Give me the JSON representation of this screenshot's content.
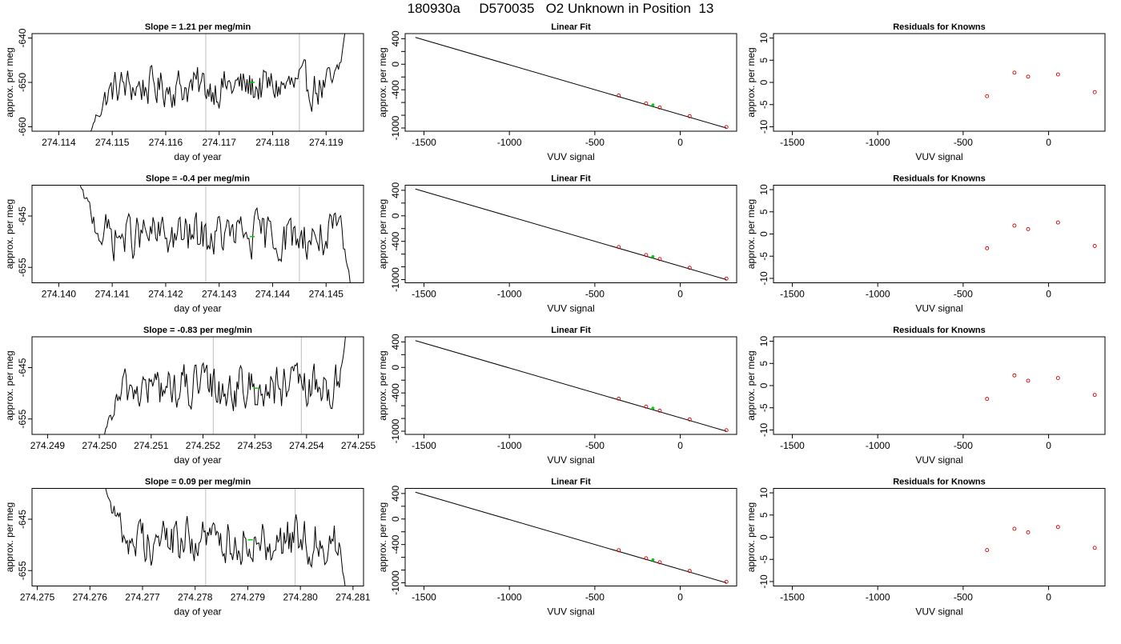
{
  "figure": {
    "title": "180930a     D570035   O2 Unknown in Position  13"
  },
  "colors": {
    "axis": "#000000",
    "trace": "#000000",
    "vline": "#c8c8c8",
    "known_point": "#cc0000",
    "unknown_point": "#00cc00"
  },
  "chart_data": [
    {
      "type": "line",
      "panel": "timeseries",
      "row": 1,
      "title": "Slope =  1.21  per meg/min",
      "xlabel": "day of year",
      "ylabel": "approx. per meg",
      "xlim": [
        274.1135,
        274.1197
      ],
      "ylim": [
        -661,
        -639
      ],
      "xticks": [
        "274.114",
        "274.115",
        "274.116",
        "274.117",
        "274.118",
        "274.119"
      ],
      "xtick_values": [
        274.114,
        274.115,
        274.116,
        274.117,
        274.118,
        274.119
      ],
      "yticks": [
        "-660",
        "-650",
        "-640"
      ],
      "ytick_values": [
        -660,
        -650,
        -640
      ],
      "vlines": [
        274.11675,
        274.1185
      ],
      "trace_x_range": [
        274.1146,
        274.11935
      ],
      "trace_start": -661,
      "trace_end": -639,
      "trace_mean": -651,
      "trace_edge": "both",
      "unknown_marker": {
        "x": 274.11762,
        "y": -650
      }
    },
    {
      "type": "line",
      "panel": "fit",
      "row": 1,
      "title": "Linear Fit",
      "xlabel": "VUV signal",
      "ylabel": "approx. per meg",
      "xlim": [
        -1610,
        330
      ],
      "ylim": [
        -1050,
        480
      ],
      "xticks": [
        "-1500",
        "-1000",
        "-500",
        "0"
      ],
      "xtick_values": [
        -1500,
        -1000,
        -500,
        0
      ],
      "yticks": [
        "-1000",
        "-800",
        "-600",
        "-400",
        "-200",
        "0",
        "200",
        "400"
      ],
      "ytick_values": [
        -1000,
        -800,
        -600,
        -400,
        -200,
        0,
        200,
        400
      ],
      "ytick_text_shown": [
        "-1000",
        "-400",
        "0",
        "400"
      ],
      "fit_line": {
        "x": [
          -1550,
          270
        ],
        "y": [
          420,
          -1000
        ]
      },
      "knowns": {
        "x": [
          -360,
          -200,
          -120,
          55,
          270
        ],
        "y": [
          -490,
          -615,
          -678,
          -815,
          -985
        ]
      },
      "unknown": {
        "x": -160,
        "y": -640
      }
    },
    {
      "type": "scatter",
      "panel": "residuals",
      "row": 1,
      "title": "Residuals for Knowns",
      "xlabel": "VUV signal",
      "ylabel": "approx. per meg",
      "xlim": [
        -1610,
        330
      ],
      "ylim": [
        -11,
        11
      ],
      "xticks": [
        "-1500",
        "-1000",
        "-500",
        "0"
      ],
      "xtick_values": [
        -1500,
        -1000,
        -500,
        0
      ],
      "yticks": [
        "-10",
        "-5",
        "0",
        "5",
        "10"
      ],
      "ytick_values": [
        -10,
        -5,
        0,
        5,
        10
      ],
      "x": [
        -360,
        -200,
        -120,
        55,
        270
      ],
      "y": [
        -3.1,
        2.2,
        1.3,
        1.8,
        -2.2
      ]
    },
    {
      "type": "line",
      "panel": "timeseries",
      "row": 2,
      "title": "Slope =  -0.4  per meg/min",
      "xlabel": "day of year",
      "ylabel": "approx. per meg",
      "xlim": [
        274.1395,
        274.1457
      ],
      "ylim": [
        -658,
        -639
      ],
      "xticks": [
        "274.140",
        "274.141",
        "274.142",
        "274.143",
        "274.144",
        "274.145"
      ],
      "xtick_values": [
        274.14,
        274.141,
        274.142,
        274.143,
        274.144,
        274.145
      ],
      "yticks": [
        "-655",
        "-645"
      ],
      "ytick_values": [
        -655,
        -645
      ],
      "vlines": [
        274.14275,
        274.1445
      ],
      "trace_x_range": [
        274.1404,
        274.14545
      ],
      "trace_start": -639,
      "trace_end": -658,
      "trace_mean": -649,
      "trace_edge": "both",
      "unknown_marker": {
        "x": 274.14362,
        "y": -649
      }
    },
    {
      "type": "line",
      "panel": "fit",
      "row": 2,
      "title": "Linear Fit",
      "xlabel": "VUV signal",
      "ylabel": "approx. per meg",
      "xlim": [
        -1610,
        330
      ],
      "ylim": [
        -1050,
        480
      ],
      "xticks": [
        "-1500",
        "-1000",
        "-500",
        "0"
      ],
      "xtick_values": [
        -1500,
        -1000,
        -500,
        0
      ],
      "yticks": [
        "-1000",
        "-800",
        "-600",
        "-400",
        "-200",
        "0",
        "200",
        "400"
      ],
      "ytick_values": [
        -1000,
        -800,
        -600,
        -400,
        -200,
        0,
        200,
        400
      ],
      "ytick_text_shown": [
        "-1000",
        "-400",
        "0",
        "400"
      ],
      "fit_line": {
        "x": [
          -1550,
          270
        ],
        "y": [
          420,
          -1000
        ]
      },
      "knowns": {
        "x": [
          -360,
          -200,
          -120,
          55,
          270
        ],
        "y": [
          -490,
          -615,
          -678,
          -815,
          -985
        ]
      },
      "unknown": {
        "x": -160,
        "y": -640
      }
    },
    {
      "type": "scatter",
      "panel": "residuals",
      "row": 2,
      "title": "Residuals for Knowns",
      "xlabel": "VUV signal",
      "ylabel": "approx. per meg",
      "xlim": [
        -1610,
        330
      ],
      "ylim": [
        -11,
        11
      ],
      "xticks": [
        "-1500",
        "-1000",
        "-500",
        "0"
      ],
      "xtick_values": [
        -1500,
        -1000,
        -500,
        0
      ],
      "yticks": [
        "-10",
        "-5",
        "0",
        "5",
        "10"
      ],
      "ytick_values": [
        -10,
        -5,
        0,
        5,
        10
      ],
      "x": [
        -360,
        -200,
        -120,
        55,
        270
      ],
      "y": [
        -3.2,
        1.9,
        1.1,
        2.6,
        -2.7
      ]
    },
    {
      "type": "line",
      "panel": "timeseries",
      "row": 3,
      "title": "Slope =  -0.83  per meg/min",
      "xlabel": "day of year",
      "ylabel": "approx. per meg",
      "xlim": [
        274.2487,
        274.2551
      ],
      "ylim": [
        -658,
        -639
      ],
      "xticks": [
        "274.249",
        "274.250",
        "274.251",
        "274.252",
        "274.253",
        "274.254",
        "274.255"
      ],
      "xtick_values": [
        274.249,
        274.25,
        274.251,
        274.252,
        274.253,
        274.254,
        274.255
      ],
      "yticks": [
        "-655",
        "-645"
      ],
      "ytick_values": [
        -655,
        -645
      ],
      "vlines": [
        274.2522,
        274.2539
      ],
      "trace_x_range": [
        274.2501,
        274.25475
      ],
      "trace_start": -658,
      "trace_end": -639,
      "trace_mean": -649,
      "trace_edge": "both",
      "unknown_marker": {
        "x": 274.25302,
        "y": -649
      }
    },
    {
      "type": "line",
      "panel": "fit",
      "row": 3,
      "title": "Linear Fit",
      "xlabel": "VUV signal",
      "ylabel": "approx. per meg",
      "xlim": [
        -1610,
        330
      ],
      "ylim": [
        -1050,
        480
      ],
      "xticks": [
        "-1500",
        "-1000",
        "-500",
        "0"
      ],
      "xtick_values": [
        -1500,
        -1000,
        -500,
        0
      ],
      "yticks": [
        "-1000",
        "-800",
        "-600",
        "-400",
        "-200",
        "0",
        "200",
        "400"
      ],
      "ytick_values": [
        -1000,
        -800,
        -600,
        -400,
        -200,
        0,
        200,
        400
      ],
      "ytick_text_shown": [
        "-1000",
        "-400",
        "0",
        "400"
      ],
      "fit_line": {
        "x": [
          -1550,
          270
        ],
        "y": [
          420,
          -1000
        ]
      },
      "knowns": {
        "x": [
          -360,
          -200,
          -120,
          55,
          270
        ],
        "y": [
          -490,
          -615,
          -678,
          -815,
          -985
        ]
      },
      "unknown": {
        "x": -160,
        "y": -640
      }
    },
    {
      "type": "scatter",
      "panel": "residuals",
      "row": 3,
      "title": "Residuals for Knowns",
      "xlabel": "VUV signal",
      "ylabel": "approx. per meg",
      "xlim": [
        -1610,
        330
      ],
      "ylim": [
        -11,
        11
      ],
      "xticks": [
        "-1500",
        "-1000",
        "-500",
        "0"
      ],
      "xtick_values": [
        -1500,
        -1000,
        -500,
        0
      ],
      "yticks": [
        "-10",
        "-5",
        "0",
        "5",
        "10"
      ],
      "ytick_values": [
        -10,
        -5,
        0,
        5,
        10
      ],
      "x": [
        -360,
        -200,
        -120,
        55,
        270
      ],
      "y": [
        -3.0,
        2.3,
        1.1,
        1.7,
        -2.1
      ]
    },
    {
      "type": "line",
      "panel": "timeseries",
      "row": 4,
      "title": "Slope =  0.09  per meg/min",
      "xlabel": "day of year",
      "ylabel": "approx. per meg",
      "xlim": [
        274.2749,
        274.2812
      ],
      "ylim": [
        -658,
        -639
      ],
      "xticks": [
        "274.275",
        "274.276",
        "274.277",
        "274.278",
        "274.279",
        "274.280",
        "274.281"
      ],
      "xtick_values": [
        274.275,
        274.276,
        274.277,
        274.278,
        274.279,
        274.28,
        274.281
      ],
      "yticks": [
        "-655",
        "-645"
      ],
      "ytick_values": [
        -655,
        -645
      ],
      "vlines": [
        274.2782,
        274.2799
      ],
      "trace_x_range": [
        274.2763,
        274.28085
      ],
      "trace_start": -639,
      "trace_end": -658,
      "trace_mean": -649,
      "trace_edge": "both",
      "unknown_marker": {
        "x": 274.27905,
        "y": -649
      }
    },
    {
      "type": "line",
      "panel": "fit",
      "row": 4,
      "title": "Linear Fit",
      "xlabel": "VUV signal",
      "ylabel": "approx. per meg",
      "xlim": [
        -1610,
        330
      ],
      "ylim": [
        -1050,
        480
      ],
      "xticks": [
        "-1500",
        "-1000",
        "-500",
        "0"
      ],
      "xtick_values": [
        -1500,
        -1000,
        -500,
        0
      ],
      "yticks": [
        "-1000",
        "-800",
        "-600",
        "-400",
        "-200",
        "0",
        "200",
        "400"
      ],
      "ytick_values": [
        -1000,
        -800,
        -600,
        -400,
        -200,
        0,
        200,
        400
      ],
      "ytick_text_shown": [
        "-1000",
        "-400",
        "0",
        "400"
      ],
      "fit_line": {
        "x": [
          -1550,
          270
        ],
        "y": [
          420,
          -1000
        ]
      },
      "knowns": {
        "x": [
          -360,
          -200,
          -120,
          55,
          270
        ],
        "y": [
          -490,
          -615,
          -678,
          -815,
          -985
        ]
      },
      "unknown": {
        "x": -160,
        "y": -640
      }
    },
    {
      "type": "scatter",
      "panel": "residuals",
      "row": 4,
      "title": "Residuals for Knowns",
      "xlabel": "VUV signal",
      "ylabel": "approx. per meg",
      "xlim": [
        -1610,
        330
      ],
      "ylim": [
        -11,
        11
      ],
      "xticks": [
        "-1500",
        "-1000",
        "-500",
        "0"
      ],
      "xtick_values": [
        -1500,
        -1000,
        -500,
        0
      ],
      "yticks": [
        "-10",
        "-5",
        "0",
        "5",
        "10"
      ],
      "ytick_values": [
        -10,
        -5,
        0,
        5,
        10
      ],
      "x": [
        -360,
        -200,
        -120,
        55,
        270
      ],
      "y": [
        -2.9,
        1.9,
        1.1,
        2.3,
        -2.4
      ]
    }
  ]
}
